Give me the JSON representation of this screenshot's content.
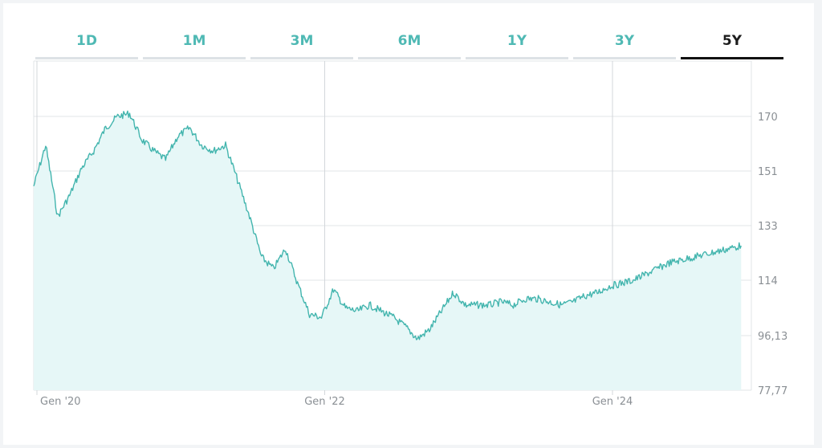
{
  "tabs": [
    {
      "label": "1D",
      "active": false
    },
    {
      "label": "1M",
      "active": false
    },
    {
      "label": "3M",
      "active": false
    },
    {
      "label": "6M",
      "active": false
    },
    {
      "label": "1Y",
      "active": false
    },
    {
      "label": "3Y",
      "active": false
    },
    {
      "label": "5Y",
      "active": true
    }
  ],
  "colors": {
    "line": "#43b5ae",
    "area": "#e6f7f7",
    "grid": "#e1e4e7",
    "tab_inactive": "#4fb9b4",
    "tab_active": "#1c1c1c"
  },
  "chart_data": {
    "type": "area",
    "title": "",
    "xlabel": "",
    "ylabel": "",
    "y_axis_position": "right",
    "ylim": [
      77.77,
      170
    ],
    "y_ticks": [
      {
        "value": 170,
        "label": "170"
      },
      {
        "value": 151,
        "label": "151"
      },
      {
        "value": 133,
        "label": "133"
      },
      {
        "value": 114,
        "label": "114"
      },
      {
        "value": 96.13,
        "label": "96,13"
      },
      {
        "value": 77.77,
        "label": "77,77"
      }
    ],
    "xlim": [
      "2020-01",
      "2024-12"
    ],
    "x_ticks": [
      {
        "value": "2020-01",
        "label": "Gen '20"
      },
      {
        "value": "2022-01",
        "label": "Gen '22"
      },
      {
        "value": "2024-01",
        "label": "Gen '24"
      }
    ],
    "grid": "on",
    "series": [
      {
        "x": [
          "2020-01",
          "2020-02",
          "2020-03",
          "2020-04",
          "2020-05",
          "2020-06",
          "2020-07",
          "2020-08",
          "2020-09",
          "2020-10",
          "2020-11",
          "2020-12",
          "2021-01",
          "2021-02",
          "2021-03",
          "2021-04",
          "2021-05",
          "2021-06",
          "2021-07",
          "2021-08",
          "2021-09",
          "2021-10",
          "2021-11",
          "2021-12",
          "2022-01",
          "2022-02",
          "2022-03",
          "2022-04",
          "2022-05",
          "2022-06",
          "2022-07",
          "2022-08",
          "2022-09",
          "2022-10",
          "2022-11",
          "2022-12",
          "2023-01",
          "2023-02",
          "2023-03",
          "2023-04",
          "2023-05",
          "2023-06",
          "2023-07",
          "2023-08",
          "2023-09",
          "2023-10",
          "2023-11",
          "2023-12",
          "2024-01",
          "2024-02",
          "2024-03",
          "2024-04",
          "2024-05",
          "2024-06",
          "2024-07",
          "2024-08",
          "2024-09",
          "2024-10",
          "2024-11",
          "2024-12"
        ],
        "values": [
          146,
          160,
          136,
          143,
          152,
          158,
          166,
          170,
          171,
          162,
          158,
          155,
          163,
          166,
          160,
          158,
          160,
          148,
          136,
          122,
          118,
          125,
          113,
          103,
          102,
          111,
          105,
          104,
          106,
          104,
          102,
          99,
          95,
          98,
          104,
          110,
          106,
          106,
          106,
          107,
          106,
          108,
          108,
          107,
          106,
          107,
          109,
          110,
          112,
          113,
          114,
          116,
          118,
          120,
          121,
          122,
          123,
          124,
          125,
          126
        ]
      }
    ]
  }
}
